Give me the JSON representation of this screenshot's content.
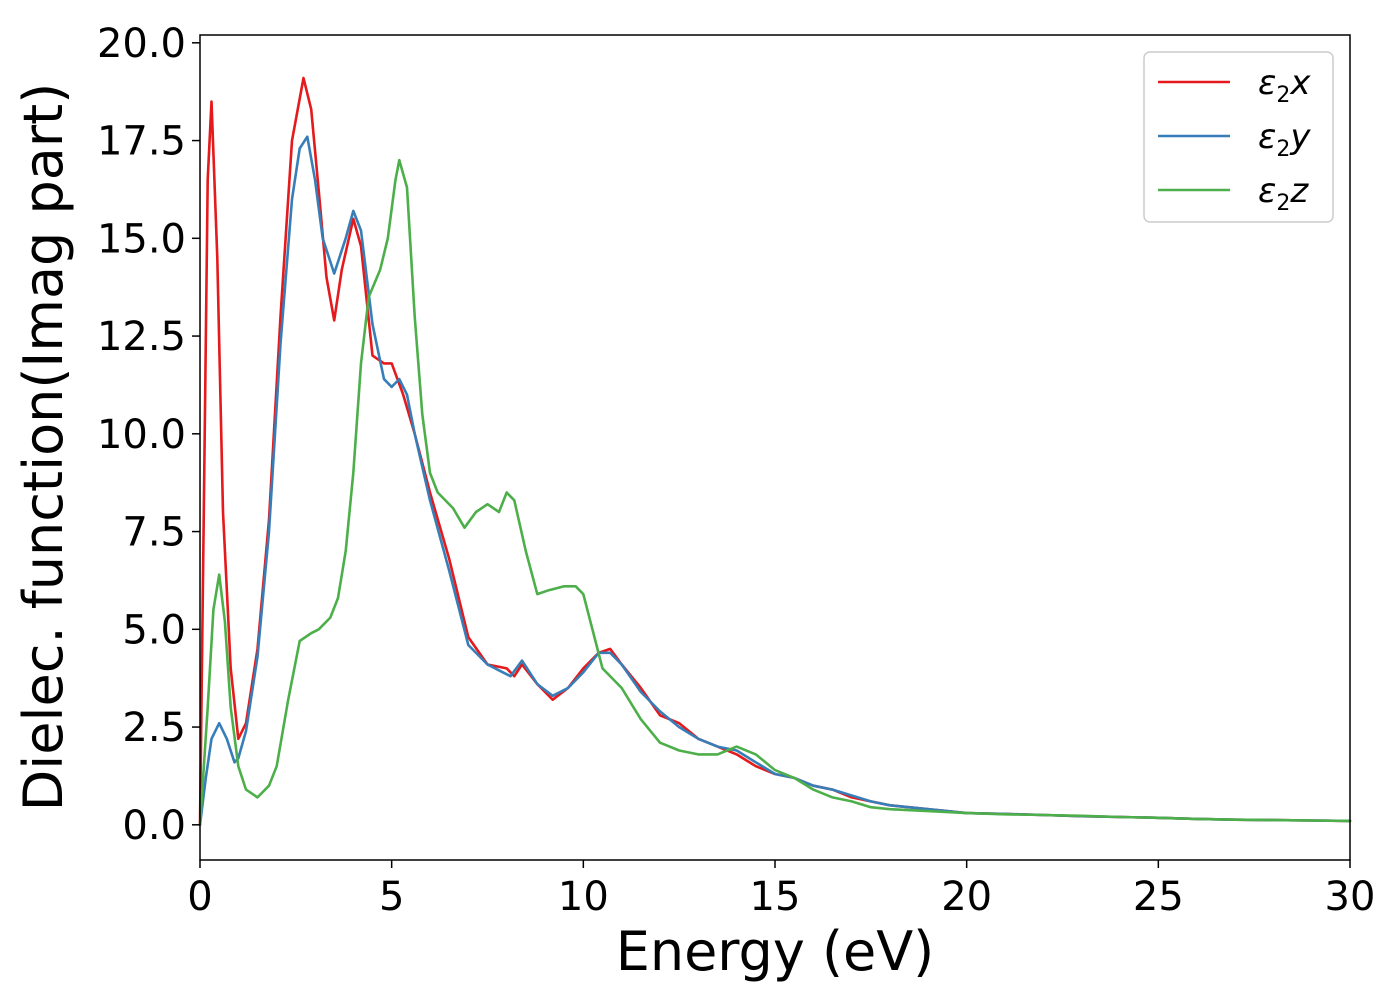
{
  "chart_data": {
    "type": "line",
    "xlabel": "Energy (eV)",
    "ylabel": "Dielec. function(Imag part)",
    "xlim": [
      0,
      30
    ],
    "ylim": [
      -0.9,
      20.2
    ],
    "xticks": [
      "0",
      "5",
      "10",
      "15",
      "20",
      "25",
      "30"
    ],
    "yticks": [
      "0.0",
      "2.5",
      "5.0",
      "7.5",
      "10.0",
      "12.5",
      "15.0",
      "17.5",
      "20.0"
    ],
    "grid": false,
    "legend_position": "top-right",
    "series": [
      {
        "name_base": "ε",
        "name_sub": "2",
        "name_suffix": "x",
        "color": "#e41a1c",
        "x": [
          0,
          0.1,
          0.2,
          0.3,
          0.45,
          0.6,
          0.8,
          1.0,
          1.2,
          1.5,
          1.8,
          2.1,
          2.4,
          2.7,
          2.9,
          3.1,
          3.3,
          3.5,
          3.7,
          4.0,
          4.2,
          4.5,
          4.8,
          5.0,
          5.3,
          5.6,
          6.0,
          6.5,
          7.0,
          7.5,
          8.0,
          8.2,
          8.4,
          8.8,
          9.2,
          9.6,
          10.0,
          10.4,
          10.7,
          11.0,
          11.5,
          12.0,
          12.5,
          13.0,
          13.5,
          14.0,
          14.5,
          15.0,
          15.5,
          16.0,
          16.5,
          17.0,
          17.5,
          18.0,
          19.0,
          20.0,
          21.0,
          22.0,
          23.0,
          24.0,
          25.0,
          26.0,
          27.0,
          28.0,
          29.0,
          30.0
        ],
        "y": [
          0.0,
          8.0,
          16.5,
          18.5,
          14.5,
          8.0,
          4.0,
          2.2,
          2.6,
          4.5,
          7.8,
          13.0,
          17.5,
          19.1,
          18.3,
          16.2,
          14.0,
          12.9,
          14.2,
          15.5,
          14.8,
          12.0,
          11.8,
          11.8,
          11.0,
          10.0,
          8.5,
          6.8,
          4.8,
          4.1,
          4.0,
          3.8,
          4.1,
          3.6,
          3.2,
          3.5,
          4.0,
          4.4,
          4.5,
          4.1,
          3.5,
          2.8,
          2.6,
          2.2,
          2.0,
          1.8,
          1.5,
          1.3,
          1.2,
          1.0,
          0.9,
          0.7,
          0.6,
          0.5,
          0.4,
          0.3,
          0.28,
          0.25,
          0.22,
          0.2,
          0.18,
          0.15,
          0.13,
          0.12,
          0.11,
          0.1
        ]
      },
      {
        "name_base": "ε",
        "name_sub": "2",
        "name_suffix": "y",
        "color": "#377eb8",
        "x": [
          0,
          0.15,
          0.3,
          0.5,
          0.7,
          0.9,
          1.0,
          1.2,
          1.5,
          1.8,
          2.1,
          2.4,
          2.6,
          2.8,
          3.0,
          3.2,
          3.5,
          3.8,
          4.0,
          4.2,
          4.5,
          4.8,
          5.0,
          5.2,
          5.4,
          5.6,
          6.0,
          6.5,
          7.0,
          7.5,
          7.9,
          8.1,
          8.4,
          8.8,
          9.2,
          9.6,
          10.0,
          10.4,
          10.7,
          11.0,
          11.5,
          12.0,
          12.5,
          13.0,
          13.5,
          14.0,
          14.5,
          15.0,
          15.5,
          16.0,
          16.5,
          17.0,
          17.5,
          18.0,
          19.0,
          20.0,
          21.0,
          22.0,
          23.0,
          24.0,
          25.0,
          26.0,
          27.0,
          28.0,
          29.0,
          30.0
        ],
        "y": [
          0.0,
          1.2,
          2.2,
          2.6,
          2.2,
          1.6,
          1.7,
          2.4,
          4.3,
          7.5,
          12.3,
          16.0,
          17.3,
          17.6,
          16.5,
          15.0,
          14.1,
          15.0,
          15.7,
          15.2,
          12.8,
          11.4,
          11.2,
          11.4,
          11.0,
          10.0,
          8.3,
          6.5,
          4.6,
          4.1,
          3.9,
          3.8,
          4.2,
          3.6,
          3.3,
          3.5,
          3.9,
          4.4,
          4.4,
          4.1,
          3.4,
          2.9,
          2.5,
          2.2,
          2.0,
          1.9,
          1.6,
          1.3,
          1.2,
          1.0,
          0.9,
          0.75,
          0.6,
          0.5,
          0.4,
          0.3,
          0.28,
          0.25,
          0.22,
          0.2,
          0.18,
          0.15,
          0.13,
          0.12,
          0.11,
          0.1
        ]
      },
      {
        "name_base": "ε",
        "name_sub": "2",
        "name_suffix": "z",
        "color": "#4daf4a",
        "x": [
          0,
          0.2,
          0.35,
          0.5,
          0.65,
          0.8,
          1.0,
          1.2,
          1.5,
          1.8,
          2.0,
          2.3,
          2.6,
          2.9,
          3.1,
          3.4,
          3.6,
          3.8,
          4.0,
          4.2,
          4.4,
          4.7,
          4.9,
          5.1,
          5.2,
          5.4,
          5.6,
          5.8,
          6.0,
          6.2,
          6.6,
          6.9,
          7.2,
          7.5,
          7.8,
          8.0,
          8.2,
          8.5,
          8.8,
          9.1,
          9.5,
          9.8,
          10.0,
          10.5,
          11.0,
          11.5,
          12.0,
          12.5,
          13.0,
          13.5,
          14.0,
          14.5,
          15.0,
          15.5,
          16.0,
          16.5,
          17.0,
          17.5,
          18.0,
          19.0,
          20.0,
          21.0,
          22.0,
          23.0,
          24.0,
          25.0,
          26.0,
          27.0,
          28.0,
          29.0,
          30.0
        ],
        "y": [
          0.0,
          3.0,
          5.5,
          6.4,
          5.2,
          3.0,
          1.5,
          0.9,
          0.7,
          1.0,
          1.5,
          3.2,
          4.7,
          4.9,
          5.0,
          5.3,
          5.8,
          7.0,
          9.0,
          11.8,
          13.5,
          14.2,
          15.0,
          16.5,
          17.0,
          16.3,
          13.0,
          10.5,
          9.0,
          8.5,
          8.1,
          7.6,
          8.0,
          8.2,
          8.0,
          8.5,
          8.3,
          7.0,
          5.9,
          6.0,
          6.1,
          6.1,
          5.9,
          4.0,
          3.5,
          2.7,
          2.1,
          1.9,
          1.8,
          1.8,
          2.0,
          1.8,
          1.4,
          1.2,
          0.9,
          0.7,
          0.6,
          0.45,
          0.4,
          0.35,
          0.3,
          0.27,
          0.25,
          0.23,
          0.2,
          0.18,
          0.15,
          0.13,
          0.12,
          0.11,
          0.1
        ]
      }
    ]
  }
}
